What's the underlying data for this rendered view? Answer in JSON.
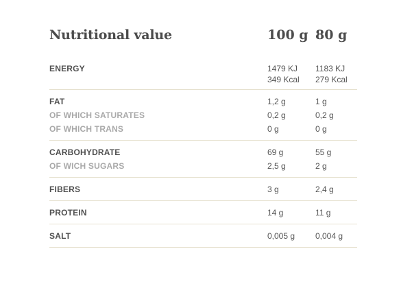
{
  "table": {
    "title": "Nutritional value",
    "col_a": "100 g",
    "col_b": "80 g",
    "energy": {
      "label": "ENERGY",
      "a_kj": "1479 KJ",
      "a_kcal": "349 Kcal",
      "b_kj": "1183 KJ",
      "b_kcal": "279 Kcal"
    },
    "fat": {
      "label": "FAT",
      "a": "1,2 g",
      "b": "1 g",
      "saturates_label": "OF WHICH SATURATES",
      "saturates_a": "0,2 g",
      "saturates_b": "0,2 g",
      "trans_label": "OF WHICH TRANS",
      "trans_a": "0 g",
      "trans_b": "0 g"
    },
    "carbohydrate": {
      "label": "CARBOHYDRATE",
      "a": "69 g",
      "b": "55 g",
      "sugars_label": "OF WICH SUGARS",
      "sugars_a": "2,5 g",
      "sugars_b": "2 g"
    },
    "fibers": {
      "label": "FIBERS",
      "a": "3 g",
      "b": "2,4 g"
    },
    "protein": {
      "label": "PROTEIN",
      "a": "14 g",
      "b": "11 g"
    },
    "salt": {
      "label": "SALT",
      "a": "0,005 g",
      "b": "0,004 g"
    }
  }
}
